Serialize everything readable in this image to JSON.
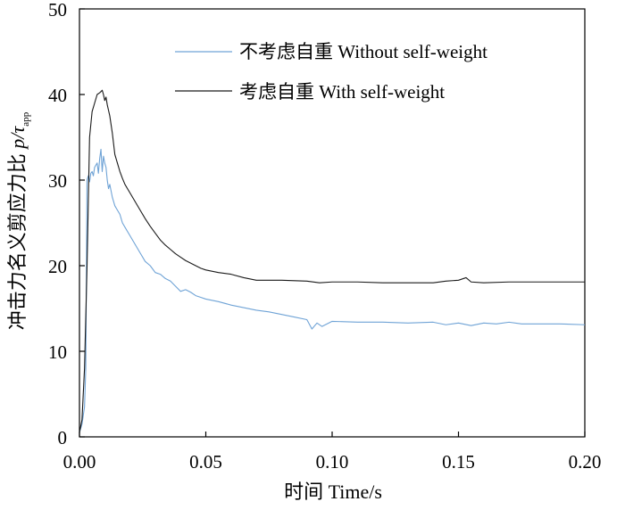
{
  "chart_data": {
    "type": "line",
    "title": "",
    "xlabel": "时间 Time/s",
    "ylabel_prefix": "冲击力名义剪应力比 ",
    "ylabel_var": "p/τ",
    "ylabel_sub": "app",
    "xlim": [
      0.0,
      0.2
    ],
    "ylim": [
      0,
      50
    ],
    "xticks": [
      0.0,
      0.05,
      0.1,
      0.15,
      0.2
    ],
    "xtick_labels": [
      "0.00",
      "0.05",
      "0.10",
      "0.15",
      "0.20"
    ],
    "yticks": [
      0,
      10,
      20,
      30,
      40,
      50
    ],
    "ytick_labels": [
      "0",
      "10",
      "20",
      "30",
      "40",
      "50"
    ],
    "grid": false,
    "legend_position": "top-right",
    "series": [
      {
        "name": "不考虑自重 Without self-weight",
        "color": "#6fa3d6",
        "x": [
          0.0,
          0.001,
          0.0015,
          0.002,
          0.0025,
          0.003,
          0.0035,
          0.004,
          0.0045,
          0.005,
          0.0055,
          0.006,
          0.007,
          0.0075,
          0.008,
          0.0085,
          0.009,
          0.0095,
          0.01,
          0.0105,
          0.011,
          0.0115,
          0.012,
          0.013,
          0.014,
          0.015,
          0.016,
          0.017,
          0.018,
          0.019,
          0.02,
          0.022,
          0.024,
          0.026,
          0.028,
          0.03,
          0.032,
          0.034,
          0.036,
          0.038,
          0.04,
          0.042,
          0.044,
          0.046,
          0.048,
          0.05,
          0.055,
          0.06,
          0.065,
          0.07,
          0.075,
          0.08,
          0.085,
          0.09,
          0.092,
          0.094,
          0.096,
          0.1,
          0.11,
          0.12,
          0.13,
          0.14,
          0.145,
          0.15,
          0.155,
          0.16,
          0.165,
          0.17,
          0.175,
          0.18,
          0.19,
          0.2
        ],
        "y": [
          0.5,
          1.5,
          2.5,
          3.5,
          8.0,
          30.0,
          30.5,
          29.8,
          30.8,
          31.0,
          30.5,
          31.5,
          32.0,
          30.8,
          32.5,
          33.6,
          31.0,
          32.8,
          32.0,
          31.5,
          30.0,
          29.0,
          29.5,
          28.0,
          27.0,
          26.5,
          26.0,
          25.0,
          24.5,
          24.0,
          23.5,
          22.5,
          21.5,
          20.5,
          20.0,
          19.2,
          19.0,
          18.5,
          18.2,
          17.6,
          17.0,
          17.2,
          16.9,
          16.5,
          16.3,
          16.1,
          15.8,
          15.4,
          15.1,
          14.8,
          14.6,
          14.3,
          14.0,
          13.7,
          12.6,
          13.3,
          12.9,
          13.5,
          13.4,
          13.4,
          13.3,
          13.4,
          13.1,
          13.3,
          13.0,
          13.3,
          13.2,
          13.4,
          13.2,
          13.2,
          13.2,
          13.1
        ]
      },
      {
        "name": "考虑自重 With self-weight",
        "color": "#1a1a1a",
        "x": [
          0.0,
          0.001,
          0.002,
          0.003,
          0.004,
          0.005,
          0.006,
          0.007,
          0.008,
          0.009,
          0.0095,
          0.01,
          0.0105,
          0.011,
          0.012,
          0.013,
          0.014,
          0.015,
          0.016,
          0.017,
          0.018,
          0.019,
          0.02,
          0.022,
          0.024,
          0.026,
          0.028,
          0.03,
          0.032,
          0.034,
          0.036,
          0.038,
          0.04,
          0.042,
          0.044,
          0.046,
          0.048,
          0.05,
          0.055,
          0.06,
          0.065,
          0.07,
          0.08,
          0.09,
          0.095,
          0.1,
          0.11,
          0.12,
          0.13,
          0.14,
          0.145,
          0.15,
          0.153,
          0.155,
          0.16,
          0.17,
          0.18,
          0.19,
          0.2
        ],
        "y": [
          0.5,
          2.0,
          8.0,
          20.0,
          35.0,
          38.0,
          39.0,
          40.0,
          40.2,
          40.5,
          40.0,
          39.3,
          39.7,
          38.8,
          37.5,
          35.5,
          33.0,
          32.0,
          31.0,
          30.2,
          29.5,
          29.0,
          28.5,
          27.5,
          26.5,
          25.5,
          24.6,
          23.8,
          23.0,
          22.4,
          21.9,
          21.4,
          21.0,
          20.6,
          20.3,
          20.0,
          19.7,
          19.5,
          19.2,
          19.0,
          18.6,
          18.3,
          18.3,
          18.2,
          18.0,
          18.1,
          18.1,
          18.0,
          18.0,
          18.0,
          18.2,
          18.3,
          18.6,
          18.1,
          18.0,
          18.1,
          18.1,
          18.1,
          18.1
        ]
      }
    ]
  }
}
